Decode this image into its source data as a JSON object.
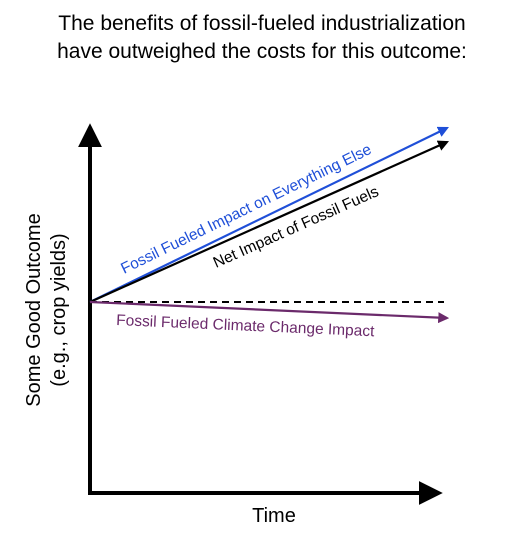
{
  "title": {
    "line1": "The benefits of fossil-fueled industrialization",
    "line2": "have outweighed the costs for this outcome:"
  },
  "axes": {
    "xlabel": "Time",
    "ylabel_line1": "Some Good Outcome",
    "ylabel_line2": "(e.g., crop yields)"
  },
  "lines": {
    "everything_else": {
      "label": "Fossil Fueled Impact on Everything Else",
      "color": "#1f4fd8"
    },
    "net": {
      "label": "Net Impact of Fossil Fuels",
      "color": "#000000"
    },
    "climate": {
      "label": "Fossil Fueled Climate Change Impact",
      "color": "#6b2a6b"
    },
    "baseline": {
      "style": "dashed",
      "color": "#000000"
    }
  }
}
